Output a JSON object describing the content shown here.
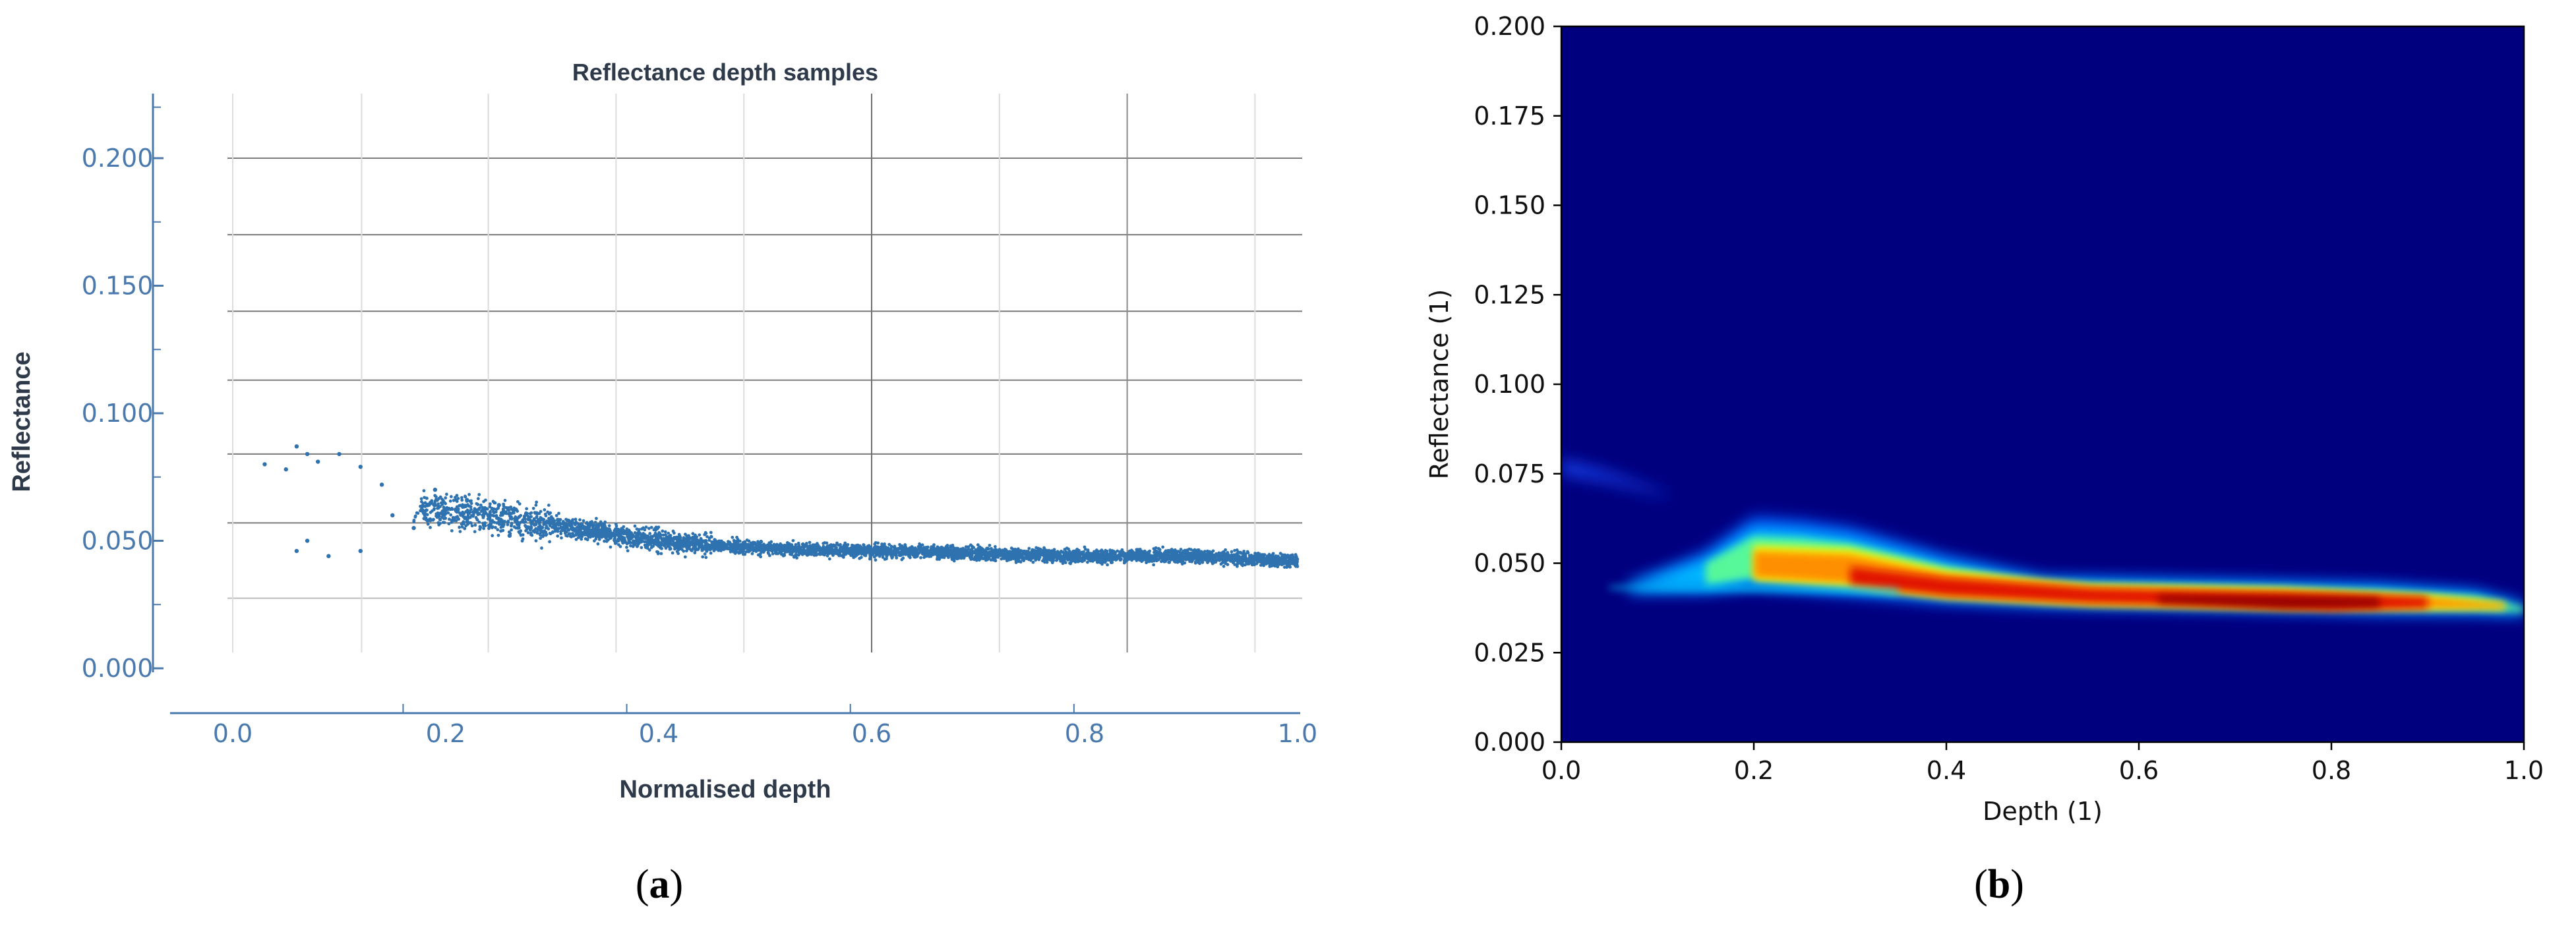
{
  "chart_data": [
    {
      "type": "scatter",
      "title": "Reflectance depth samples",
      "xlabel": "Normalised depth",
      "ylabel": "Reflectance",
      "xlim": [
        -0.06,
        1.0
      ],
      "ylim": [
        -0.01,
        0.225
      ],
      "xticks": [
        "0.0",
        "0.2",
        "0.4",
        "0.6",
        "0.8",
        "1.0"
      ],
      "yticks": [
        "0.000",
        "0.050",
        "0.100",
        "0.150",
        "0.200"
      ],
      "grid": true,
      "color": "#2f72b0",
      "panel_label": "a",
      "points": [
        [
          0.03,
          0.08
        ],
        [
          0.05,
          0.078
        ],
        [
          0.06,
          0.087
        ],
        [
          0.07,
          0.084
        ],
        [
          0.08,
          0.081
        ],
        [
          0.1,
          0.084
        ],
        [
          0.12,
          0.079
        ],
        [
          0.14,
          0.072
        ],
        [
          0.06,
          0.046
        ],
        [
          0.07,
          0.05
        ],
        [
          0.09,
          0.044
        ],
        [
          0.12,
          0.046
        ],
        [
          0.15,
          0.06
        ],
        [
          0.17,
          0.055
        ],
        [
          0.19,
          0.07
        ],
        [
          0.2,
          0.062
        ],
        [
          0.22,
          0.066
        ],
        [
          0.24,
          0.06
        ],
        [
          0.25,
          0.064
        ],
        [
          0.26,
          0.052
        ]
      ],
      "trend": [
        [
          0.2,
          0.062
        ],
        [
          0.3,
          0.056
        ],
        [
          0.4,
          0.05
        ],
        [
          0.5,
          0.047
        ],
        [
          0.6,
          0.046
        ],
        [
          0.7,
          0.045
        ],
        [
          0.8,
          0.044
        ],
        [
          0.9,
          0.044
        ],
        [
          1.0,
          0.042
        ]
      ]
    },
    {
      "type": "heatmap",
      "title": "",
      "xlabel": "Depth (1)",
      "ylabel": "Reflectance (1)",
      "xlim": [
        0.0,
        1.0
      ],
      "ylim": [
        0.0,
        0.2
      ],
      "xticks": [
        "0.0",
        "0.2",
        "0.4",
        "0.6",
        "0.8",
        "1.0"
      ],
      "yticks": [
        "0.000",
        "0.025",
        "0.050",
        "0.075",
        "0.100",
        "0.125",
        "0.150",
        "0.175",
        "0.200"
      ],
      "colormap": "jet",
      "background": "#00007f",
      "panel_label": "b",
      "ridge": [
        [
          0.07,
          0.043
        ],
        [
          0.2,
          0.049
        ],
        [
          0.3,
          0.047
        ],
        [
          0.4,
          0.043
        ],
        [
          0.5,
          0.041
        ],
        [
          0.6,
          0.04
        ],
        [
          0.7,
          0.04
        ],
        [
          0.8,
          0.039
        ],
        [
          0.9,
          0.039
        ],
        [
          1.0,
          0.037
        ]
      ]
    }
  ],
  "captions": {
    "a": {
      "open": "(",
      "letter": "a",
      "close": ")"
    },
    "b": {
      "open": "(",
      "letter": "b",
      "close": ")"
    }
  }
}
